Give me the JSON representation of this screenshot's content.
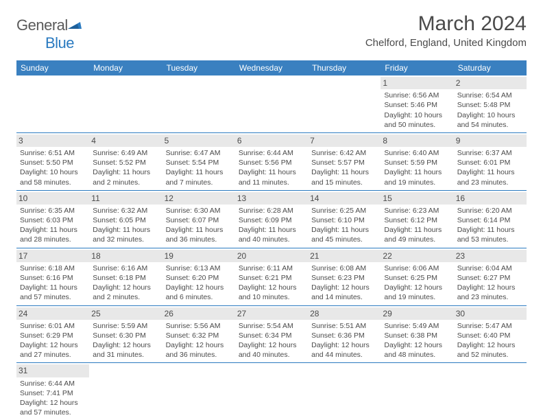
{
  "logo": {
    "text_general": "General",
    "text_blue": "Blue"
  },
  "title": "March 2024",
  "location": "Chelford, England, United Kingdom",
  "colors": {
    "header_bg": "#3a80c0",
    "header_text": "#ffffff",
    "cell_border": "#2a7ac0",
    "daynum_bg": "#e8e8e8",
    "text": "#4a4a4a",
    "logo_blue": "#2a7ac0"
  },
  "weekdays": [
    "Sunday",
    "Monday",
    "Tuesday",
    "Wednesday",
    "Thursday",
    "Friday",
    "Saturday"
  ],
  "weeks": [
    [
      null,
      null,
      null,
      null,
      null,
      {
        "n": "1",
        "sunrise": "6:56 AM",
        "sunset": "5:46 PM",
        "daylight": "10 hours and 50 minutes."
      },
      {
        "n": "2",
        "sunrise": "6:54 AM",
        "sunset": "5:48 PM",
        "daylight": "10 hours and 54 minutes."
      }
    ],
    [
      {
        "n": "3",
        "sunrise": "6:51 AM",
        "sunset": "5:50 PM",
        "daylight": "10 hours and 58 minutes."
      },
      {
        "n": "4",
        "sunrise": "6:49 AM",
        "sunset": "5:52 PM",
        "daylight": "11 hours and 2 minutes."
      },
      {
        "n": "5",
        "sunrise": "6:47 AM",
        "sunset": "5:54 PM",
        "daylight": "11 hours and 7 minutes."
      },
      {
        "n": "6",
        "sunrise": "6:44 AM",
        "sunset": "5:56 PM",
        "daylight": "11 hours and 11 minutes."
      },
      {
        "n": "7",
        "sunrise": "6:42 AM",
        "sunset": "5:57 PM",
        "daylight": "11 hours and 15 minutes."
      },
      {
        "n": "8",
        "sunrise": "6:40 AM",
        "sunset": "5:59 PM",
        "daylight": "11 hours and 19 minutes."
      },
      {
        "n": "9",
        "sunrise": "6:37 AM",
        "sunset": "6:01 PM",
        "daylight": "11 hours and 23 minutes."
      }
    ],
    [
      {
        "n": "10",
        "sunrise": "6:35 AM",
        "sunset": "6:03 PM",
        "daylight": "11 hours and 28 minutes."
      },
      {
        "n": "11",
        "sunrise": "6:32 AM",
        "sunset": "6:05 PM",
        "daylight": "11 hours and 32 minutes."
      },
      {
        "n": "12",
        "sunrise": "6:30 AM",
        "sunset": "6:07 PM",
        "daylight": "11 hours and 36 minutes."
      },
      {
        "n": "13",
        "sunrise": "6:28 AM",
        "sunset": "6:09 PM",
        "daylight": "11 hours and 40 minutes."
      },
      {
        "n": "14",
        "sunrise": "6:25 AM",
        "sunset": "6:10 PM",
        "daylight": "11 hours and 45 minutes."
      },
      {
        "n": "15",
        "sunrise": "6:23 AM",
        "sunset": "6:12 PM",
        "daylight": "11 hours and 49 minutes."
      },
      {
        "n": "16",
        "sunrise": "6:20 AM",
        "sunset": "6:14 PM",
        "daylight": "11 hours and 53 minutes."
      }
    ],
    [
      {
        "n": "17",
        "sunrise": "6:18 AM",
        "sunset": "6:16 PM",
        "daylight": "11 hours and 57 minutes."
      },
      {
        "n": "18",
        "sunrise": "6:16 AM",
        "sunset": "6:18 PM",
        "daylight": "12 hours and 2 minutes."
      },
      {
        "n": "19",
        "sunrise": "6:13 AM",
        "sunset": "6:20 PM",
        "daylight": "12 hours and 6 minutes."
      },
      {
        "n": "20",
        "sunrise": "6:11 AM",
        "sunset": "6:21 PM",
        "daylight": "12 hours and 10 minutes."
      },
      {
        "n": "21",
        "sunrise": "6:08 AM",
        "sunset": "6:23 PM",
        "daylight": "12 hours and 14 minutes."
      },
      {
        "n": "22",
        "sunrise": "6:06 AM",
        "sunset": "6:25 PM",
        "daylight": "12 hours and 19 minutes."
      },
      {
        "n": "23",
        "sunrise": "6:04 AM",
        "sunset": "6:27 PM",
        "daylight": "12 hours and 23 minutes."
      }
    ],
    [
      {
        "n": "24",
        "sunrise": "6:01 AM",
        "sunset": "6:29 PM",
        "daylight": "12 hours and 27 minutes."
      },
      {
        "n": "25",
        "sunrise": "5:59 AM",
        "sunset": "6:30 PM",
        "daylight": "12 hours and 31 minutes."
      },
      {
        "n": "26",
        "sunrise": "5:56 AM",
        "sunset": "6:32 PM",
        "daylight": "12 hours and 36 minutes."
      },
      {
        "n": "27",
        "sunrise": "5:54 AM",
        "sunset": "6:34 PM",
        "daylight": "12 hours and 40 minutes."
      },
      {
        "n": "28",
        "sunrise": "5:51 AM",
        "sunset": "6:36 PM",
        "daylight": "12 hours and 44 minutes."
      },
      {
        "n": "29",
        "sunrise": "5:49 AM",
        "sunset": "6:38 PM",
        "daylight": "12 hours and 48 minutes."
      },
      {
        "n": "30",
        "sunrise": "5:47 AM",
        "sunset": "6:40 PM",
        "daylight": "12 hours and 52 minutes."
      }
    ],
    [
      {
        "n": "31",
        "sunrise": "6:44 AM",
        "sunset": "7:41 PM",
        "daylight": "12 hours and 57 minutes."
      },
      null,
      null,
      null,
      null,
      null,
      null
    ]
  ],
  "labels": {
    "sunrise": "Sunrise: ",
    "sunset": "Sunset: ",
    "daylight": "Daylight: "
  }
}
